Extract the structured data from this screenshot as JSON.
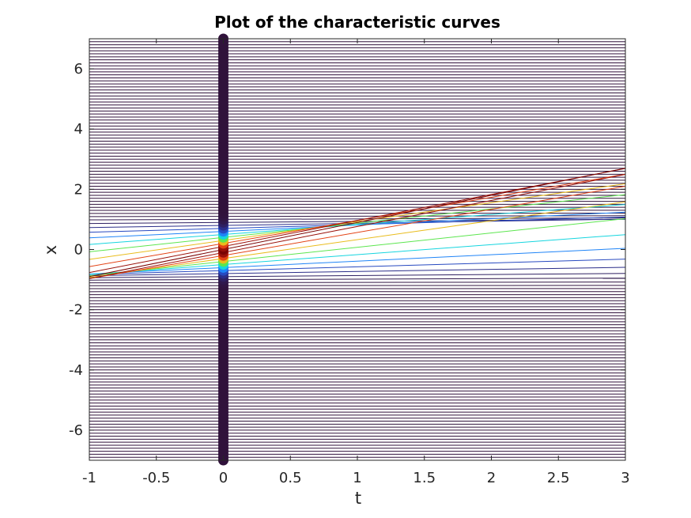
{
  "chart_data": {
    "type": "line",
    "title": "Plot of the characteristic curves",
    "xlabel": "t",
    "ylabel": "x",
    "xlim": [
      -1,
      3
    ],
    "ylim": [
      -7,
      7
    ],
    "xticks": [
      "-1",
      "-0.5",
      "0",
      "0.5",
      "1",
      "1.5",
      "2",
      "2.5",
      "3"
    ],
    "yticks": [
      "-6",
      "-4",
      "-2",
      "0",
      "2",
      "4",
      "6"
    ],
    "grid": false,
    "legend": "none",
    "description_of_series": "characteristic lines x = x0 + u0(x0)*t for initial points x0 in [-7, 7]; initial markers plotted at t = 0 colored by u0",
    "x0_range": [
      -7,
      7
    ],
    "x0_step": 0.1,
    "speed_profile": {
      "type": "gaussian",
      "peak_speed": 0.9,
      "center": 0,
      "width": 0.5
    },
    "initial_markers_t": 0,
    "colormap": "jet-like (dark blue low, dark red high)"
  }
}
